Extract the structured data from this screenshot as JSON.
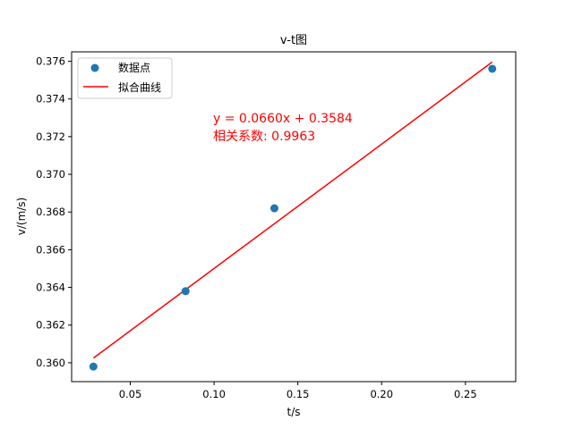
{
  "chart_data": {
    "type": "scatter",
    "title": "v-t图",
    "xlabel": "t/s",
    "ylabel": "v/(m/s)",
    "xlim": [
      0.015,
      0.28
    ],
    "ylim": [
      0.359,
      0.3765
    ],
    "xticks": [
      0.05,
      0.1,
      0.15,
      0.2,
      0.25
    ],
    "xtick_labels": [
      "0.05",
      "0.10",
      "0.15",
      "0.20",
      "0.25"
    ],
    "yticks": [
      0.36,
      0.362,
      0.364,
      0.366,
      0.368,
      0.37,
      0.372,
      0.374,
      0.376
    ],
    "ytick_labels": [
      "0.360",
      "0.362",
      "0.364",
      "0.366",
      "0.368",
      "0.370",
      "0.372",
      "0.374",
      "0.376"
    ],
    "grid": false,
    "legend_position": "top-left",
    "series": [
      {
        "name": "数据点",
        "kind": "scatter",
        "color": "#1f77b4",
        "x": [
          0.028,
          0.083,
          0.136,
          0.266
        ],
        "y": [
          0.3598,
          0.3638,
          0.3682,
          0.3756
        ]
      },
      {
        "name": "拟合曲线",
        "kind": "line",
        "color": "#ff0000",
        "x": [
          0.028,
          0.266
        ],
        "y": [
          0.36025,
          0.37596
        ]
      }
    ],
    "annotations": [
      {
        "text": "y = 0.0660x + 0.3584",
        "x": 0.1,
        "y": 0.373,
        "color": "#ff0000"
      },
      {
        "text": "相关系数: 0.9963",
        "x": 0.1,
        "y": 0.3721,
        "color": "#ff0000"
      }
    ]
  }
}
